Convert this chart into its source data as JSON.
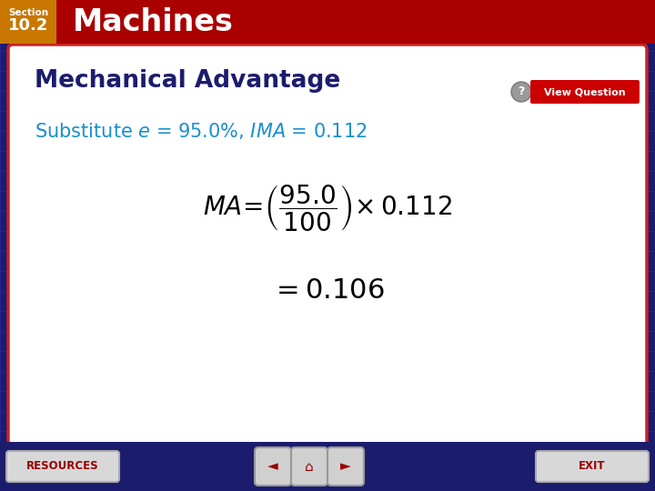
{
  "bg_color": "#1c1c6e",
  "header_bg": "#aa0000",
  "header_section_bg": "#c87800",
  "content_bg": "#ffffff",
  "content_title": "Mechanical Advantage",
  "content_title_color": "#1c1c6e",
  "substitute_text_color": "#1a8fcf",
  "formula_color": "#000000",
  "result_color": "#000000",
  "footer_bg": "#1c1c6e",
  "resources_label": "RESOURCES",
  "exit_label": "EXIT",
  "view_question_label": "View Question",
  "header_title": "Machines",
  "grid_color": "#2828a0",
  "nav_btn_color": "#cccccc",
  "nav_arrow_color": "#880000"
}
